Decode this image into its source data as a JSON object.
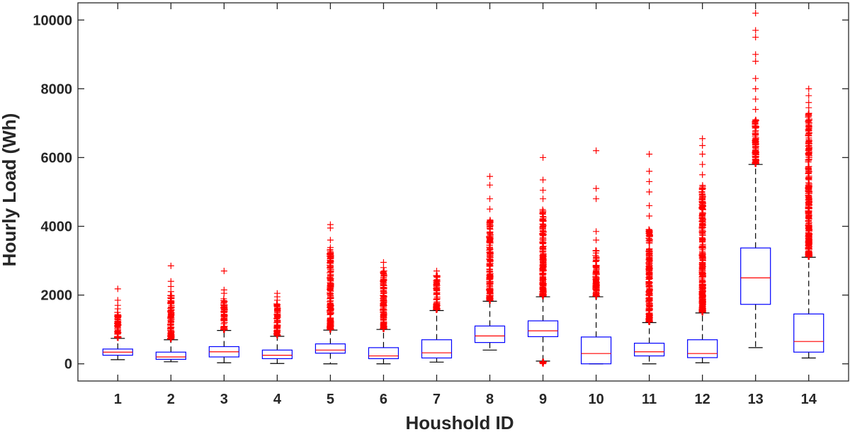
{
  "chart_data": {
    "type": "boxplot",
    "title": "",
    "xlabel": "Houshold ID",
    "ylabel": "Hourly Load (Wh)",
    "ylim": [
      -500,
      10500
    ],
    "yticks": [
      0,
      2000,
      4000,
      6000,
      8000,
      10000
    ],
    "grid": false,
    "colors": {
      "box": "#0000ff",
      "median": "#ff0000",
      "whisker": "#000000",
      "outlier": "#ff0000",
      "axis": "#262626"
    },
    "categories": [
      "1",
      "2",
      "3",
      "4",
      "5",
      "6",
      "7",
      "8",
      "9",
      "10",
      "11",
      "12",
      "13",
      "14"
    ],
    "boxes": [
      {
        "id": "1",
        "lower_whisker": 120,
        "q1": 250,
        "median": 340,
        "q3": 430,
        "upper_whisker": 740,
        "outlier_range": [
          760,
          1500
        ],
        "outliers": [
          1600,
          1700,
          1850,
          2180
        ]
      },
      {
        "id": "2",
        "lower_whisker": 60,
        "q1": 130,
        "median": 200,
        "q3": 340,
        "upper_whisker": 700,
        "outlier_range": [
          720,
          2000
        ],
        "outliers": [
          2100,
          2250,
          2400,
          2850
        ]
      },
      {
        "id": "3",
        "lower_whisker": 30,
        "q1": 200,
        "median": 350,
        "q3": 500,
        "upper_whisker": 970,
        "outlier_range": [
          990,
          1900
        ],
        "outliers": [
          2050,
          2150,
          2700
        ]
      },
      {
        "id": "4",
        "lower_whisker": 10,
        "q1": 150,
        "median": 250,
        "q3": 400,
        "upper_whisker": 800,
        "outlier_range": [
          820,
          1750
        ],
        "outliers": [
          1850,
          1950,
          2050
        ]
      },
      {
        "id": "5",
        "lower_whisker": 0,
        "q1": 310,
        "median": 400,
        "q3": 580,
        "upper_whisker": 980,
        "outlier_range": [
          1000,
          3400
        ],
        "outliers": [
          3600,
          3950,
          4050
        ]
      },
      {
        "id": "6",
        "lower_whisker": 0,
        "q1": 150,
        "median": 230,
        "q3": 470,
        "upper_whisker": 1000,
        "outlier_range": [
          1020,
          2700
        ],
        "outliers": [
          2800,
          2950
        ]
      },
      {
        "id": "7",
        "lower_whisker": 50,
        "q1": 170,
        "median": 320,
        "q3": 700,
        "upper_whisker": 1550,
        "outlier_range": [
          1570,
          2600
        ],
        "outliers": [
          2700
        ]
      },
      {
        "id": "8",
        "lower_whisker": 400,
        "q1": 620,
        "median": 810,
        "q3": 1100,
        "upper_whisker": 1820,
        "outlier_range": [
          1840,
          4200
        ],
        "outliers": [
          4500,
          4800,
          5200,
          5450
        ]
      },
      {
        "id": "9",
        "lower_whisker": 80,
        "q1": 790,
        "median": 960,
        "q3": 1250,
        "upper_whisker": 1950,
        "outlier_range": [
          1970,
          4500
        ],
        "outliers": [
          4800,
          5050,
          5350,
          6000
        ],
        "low_outlier_range": [
          0,
          60
        ]
      },
      {
        "id": "10",
        "lower_whisker": 0,
        "q1": 0,
        "median": 300,
        "q3": 780,
        "upper_whisker": 1950,
        "outlier_range": [
          1970,
          3300
        ],
        "outliers": [
          3600,
          3850,
          4800,
          5100,
          6200
        ]
      },
      {
        "id": "11",
        "lower_whisker": 0,
        "q1": 230,
        "median": 350,
        "q3": 600,
        "upper_whisker": 1200,
        "outlier_range": [
          1220,
          4000
        ],
        "outliers": [
          4300,
          4600,
          5000,
          5300,
          5600,
          6100
        ]
      },
      {
        "id": "12",
        "lower_whisker": 30,
        "q1": 180,
        "median": 300,
        "q3": 700,
        "upper_whisker": 1480,
        "outlier_range": [
          1500,
          5200
        ],
        "outliers": [
          5500,
          5800,
          6100,
          6350,
          6550
        ]
      },
      {
        "id": "13",
        "lower_whisker": 470,
        "q1": 1730,
        "median": 2500,
        "q3": 3370,
        "upper_whisker": 5800,
        "outlier_range": [
          5820,
          7100
        ],
        "outliers": [
          7400,
          7700,
          8000,
          8300,
          8800,
          9000,
          9500,
          9700,
          10200
        ]
      },
      {
        "id": "14",
        "lower_whisker": 170,
        "q1": 340,
        "median": 650,
        "q3": 1450,
        "upper_whisker": 3100,
        "outlier_range": [
          3120,
          7300
        ],
        "outliers": [
          7450,
          7600,
          7800,
          8000
        ]
      }
    ]
  }
}
